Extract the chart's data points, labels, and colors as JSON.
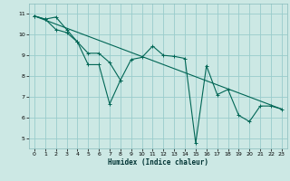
{
  "xlabel": "Humidex (Indice chaleur)",
  "bg_color": "#cce8e4",
  "grid_color": "#99cccc",
  "line_color": "#006655",
  "xlim": [
    -0.5,
    23.5
  ],
  "ylim": [
    4.5,
    11.5
  ],
  "xticks": [
    0,
    1,
    2,
    3,
    4,
    5,
    6,
    7,
    8,
    9,
    10,
    11,
    12,
    13,
    14,
    15,
    16,
    17,
    18,
    19,
    20,
    21,
    22,
    23
  ],
  "yticks": [
    5,
    6,
    7,
    8,
    9,
    10,
    11
  ],
  "line1_x": [
    0,
    1,
    2,
    3,
    4,
    5,
    6,
    7,
    8,
    9,
    10,
    11,
    12,
    13,
    14,
    15,
    16,
    17,
    18,
    19,
    20,
    21,
    22,
    23
  ],
  "line1_y": [
    10.9,
    10.75,
    10.85,
    10.25,
    9.65,
    8.55,
    8.55,
    6.65,
    7.8,
    8.8,
    8.9,
    9.45,
    9.0,
    8.95,
    8.85,
    4.75,
    8.5,
    7.1,
    7.35,
    6.1,
    5.8,
    6.55,
    6.55,
    6.4
  ],
  "line2_x": [
    0,
    1,
    2,
    3,
    4,
    5,
    6,
    7,
    8,
    9,
    10,
    11,
    12,
    13,
    14,
    15,
    16,
    17,
    18,
    19,
    20,
    21,
    22,
    23
  ],
  "line2_y": [
    10.9,
    10.75,
    10.25,
    10.1,
    9.65,
    9.1,
    9.1,
    8.65,
    7.8,
    null,
    null,
    null,
    null,
    null,
    null,
    null,
    null,
    null,
    null,
    null,
    null,
    null,
    null,
    null
  ],
  "line3_x": [
    0,
    23
  ],
  "line3_y": [
    10.9,
    6.4
  ]
}
